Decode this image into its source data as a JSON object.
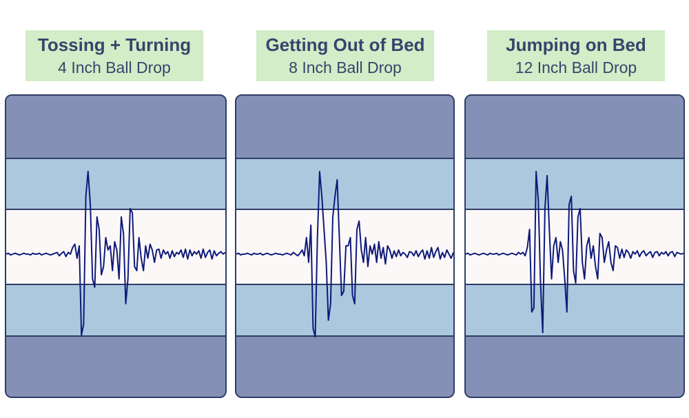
{
  "colors": {
    "label_bg": "#d2edc7",
    "label_text": "#36456c",
    "outer_band": "#8490b5",
    "middle_band": "#acc8de",
    "center_band": "#fdf8f8",
    "border": "#2e3c66",
    "trace": "#0d1a7a"
  },
  "chart_data": [
    {
      "type": "line",
      "title": "Tossing + Turning",
      "subtitle": "4 Inch Ball Drop",
      "xlabel": "",
      "ylabel": "",
      "bands": [
        "outer",
        "middle",
        "center",
        "middle",
        "outer"
      ],
      "ylim": [
        -1,
        1
      ],
      "series": [
        {
          "values": [
            0,
            0.01,
            -0.01,
            0,
            0.01,
            0,
            -0.01,
            0,
            0.01,
            0,
            0,
            -0.01,
            0.01,
            0,
            0,
            0.01,
            -0.01,
            0,
            0.01,
            0,
            -0.01,
            0,
            0.01,
            0.02,
            -0.02,
            0.01,
            0.03,
            -0.03,
            0.02,
            0,
            0.08,
            0.12,
            -0.05,
            0.1,
            -0.98,
            -0.85,
            0.7,
            1.0,
            0.6,
            -0.3,
            -0.4,
            0.45,
            0.3,
            -0.25,
            -0.15,
            0.2,
            0.05,
            0.1,
            -0.2,
            0.15,
            0.05,
            -0.3,
            0.45,
            0.25,
            -0.6,
            -0.3,
            0.55,
            0.5,
            -0.15,
            -0.2,
            0.2,
            -0.05,
            -0.2,
            0.1,
            -0.05,
            0.12,
            0.05,
            -0.1,
            0.05,
            0.06,
            -0.05,
            0.05,
            0,
            0.03,
            -0.05,
            0.04,
            -0.03,
            0.02,
            0,
            0.05,
            -0.04,
            0.06,
            -0.06,
            0.05,
            -0.02,
            0.03,
            0,
            0.04,
            -0.05,
            0.06,
            -0.04,
            0.02,
            0.05,
            -0.06,
            0.04,
            -0.02,
            0.01,
            0.03,
            0,
            0.02
          ]
        }
      ]
    },
    {
      "type": "line",
      "title": "Getting Out of Bed",
      "subtitle": "8 Inch Ball Drop",
      "xlabel": "",
      "ylabel": "",
      "bands": [
        "outer",
        "middle",
        "center",
        "middle",
        "outer"
      ],
      "ylim": [
        -1,
        1
      ],
      "series": [
        {
          "values": [
            0,
            0.01,
            -0.01,
            0,
            0,
            0.01,
            0,
            -0.01,
            0.01,
            0,
            0,
            0.01,
            -0.01,
            0,
            0.01,
            0,
            -0.01,
            0,
            0.01,
            0,
            0,
            -0.01,
            0,
            0.01,
            0,
            -0.01,
            0.02,
            0,
            -0.02,
            0.01,
            0.05,
            -0.02,
            0.2,
            -0.1,
            0.35,
            -0.9,
            -1.0,
            0.2,
            1.0,
            0.7,
            0.3,
            -0.1,
            -0.8,
            -0.6,
            0.45,
            0.7,
            0.9,
            0.2,
            -0.5,
            -0.45,
            0.1,
            0.1,
            0.2,
            -0.5,
            -0.6,
            0.3,
            0.4,
            0.05,
            -0.1,
            0.2,
            -0.15,
            0.1,
            0,
            0.12,
            -0.1,
            0.15,
            -0.05,
            0.08,
            -0.12,
            0.1,
            0.05,
            -0.05,
            0.04,
            -0.03,
            0.05,
            -0.02,
            0.02,
            0,
            -0.04,
            0.03,
            0.02,
            -0.02,
            0.04,
            -0.03,
            0.02,
            0.05,
            -0.06,
            0.04,
            -0.05,
            0.08,
            -0.04,
            0.03,
            0.08,
            -0.06,
            0.02,
            -0.04,
            0.05,
            0,
            -0.05,
            0.02
          ]
        }
      ]
    },
    {
      "type": "line",
      "title": "Jumping on Bed",
      "subtitle": "12 Inch Ball Drop",
      "xlabel": "",
      "ylabel": "",
      "bands": [
        "outer",
        "middle",
        "center",
        "middle",
        "outer"
      ],
      "ylim": [
        -1,
        1
      ],
      "series": [
        {
          "values": [
            0,
            0.01,
            -0.01,
            0,
            0.01,
            0,
            -0.01,
            0,
            0.01,
            0,
            -0.01,
            0.01,
            0,
            0,
            0.01,
            -0.01,
            0,
            0.01,
            0,
            -0.01,
            0,
            0.01,
            0,
            -0.01,
            0.02,
            0,
            0.02,
            -0.02,
            0.08,
            0.3,
            -0.7,
            -0.65,
            1.0,
            0.65,
            -0.35,
            -0.95,
            0.55,
            0.95,
            0.3,
            -0.3,
            0.1,
            0.2,
            -0.1,
            0.15,
            0.05,
            -0.3,
            -0.7,
            0.6,
            0.7,
            -0.2,
            -0.35,
            0.45,
            0.55,
            -0.1,
            -0.3,
            0.1,
            0.2,
            -0.05,
            0.1,
            -0.15,
            -0.3,
            0.25,
            0.2,
            -0.1,
            0.05,
            0.15,
            -0.1,
            -0.2,
            0.1,
            0.08,
            -0.05,
            0.06,
            -0.04,
            0.05,
            0.02,
            -0.05,
            0.03,
            0,
            0.04,
            -0.03,
            0.02,
            0.04,
            -0.02,
            0.01,
            0.03,
            -0.04,
            0.02,
            0.03,
            -0.02,
            0.02,
            0,
            0.03,
            -0.02,
            0.02,
            0.03,
            -0.03,
            0.02,
            0.01,
            0,
            0.01
          ]
        }
      ]
    }
  ]
}
